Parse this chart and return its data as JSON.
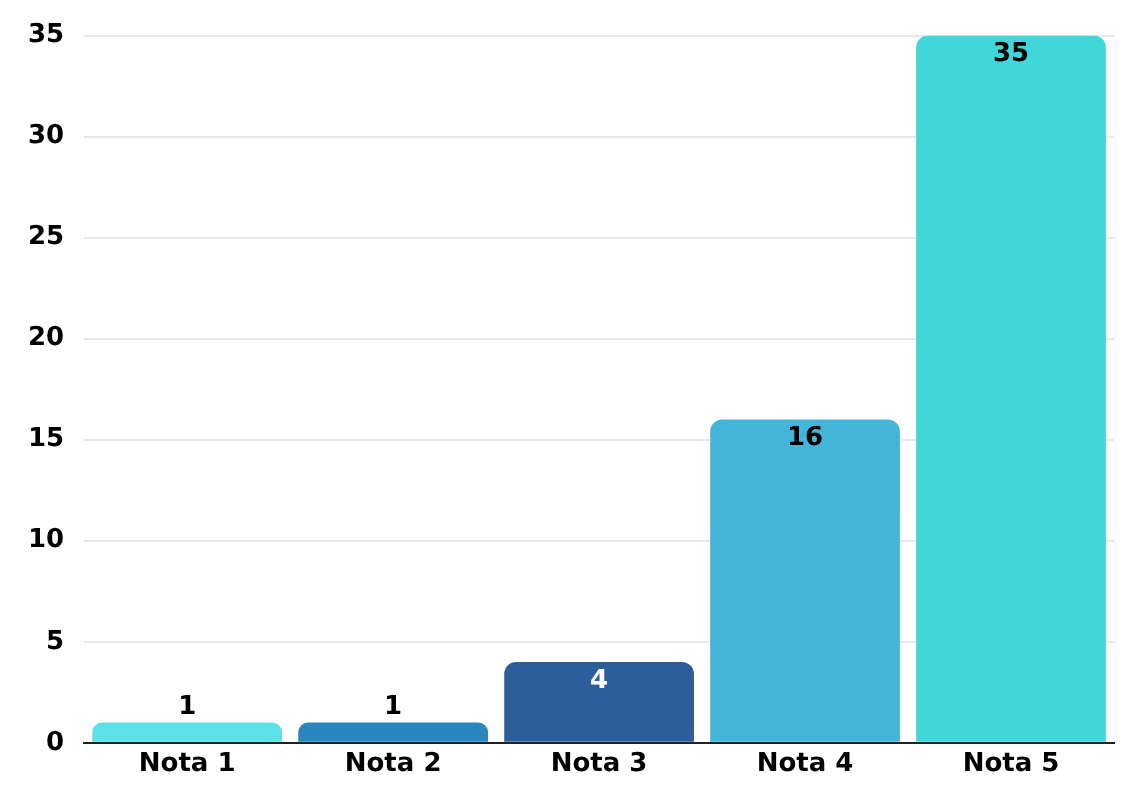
{
  "chart_data": {
    "type": "bar",
    "categories": [
      "Nota 1",
      "Nota 2",
      "Nota 3",
      "Nota 4",
      "Nota 5"
    ],
    "values": [
      1,
      1,
      4,
      16,
      35
    ],
    "colors": [
      "#5ce1e6",
      "#2a86bd",
      "#2e5e9a",
      "#44b5d6",
      "#40d7db"
    ],
    "ylim": [
      0,
      35
    ],
    "yticks": [
      0,
      5,
      10,
      15,
      20,
      25,
      30,
      35
    ],
    "grid": "y",
    "data_labels": true,
    "legend": false
  }
}
